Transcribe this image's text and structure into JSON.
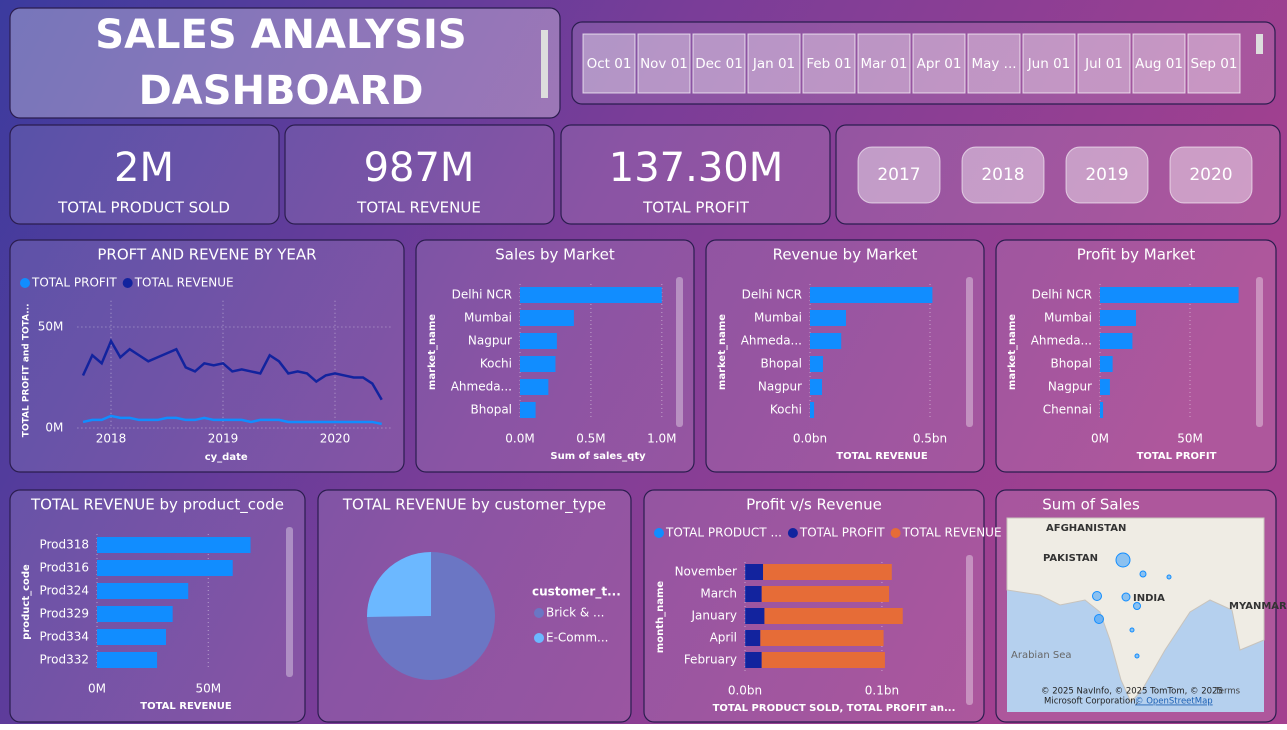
{
  "header": {
    "title": [
      "SALES ANALYSIS",
      "DASHBOARD"
    ]
  },
  "month_slicer": [
    "Oct 01",
    "Nov 01",
    "Dec 01",
    "Jan 01",
    "Feb 01",
    "Mar 01",
    "Apr 01",
    "May ...",
    "Jun 01",
    "Jul 01",
    "Aug 01",
    "Sep 01"
  ],
  "kpis": [
    {
      "value": "2M",
      "label": "TOTAL PRODUCT SOLD"
    },
    {
      "value": "987M",
      "label": "TOTAL REVENUE"
    },
    {
      "value": "137.30M",
      "label": "TOTAL PROFIT"
    }
  ],
  "year_slicer": [
    "2017",
    "2018",
    "2019",
    "2020"
  ],
  "chart_data": [
    {
      "type": "line",
      "title": "PROFT AND REVENE BY YEAR",
      "x_label": "cy_date",
      "y_label": "TOTAL PROFIT and TOTA...",
      "legend": "top-left",
      "grid": true,
      "x": [
        2017.75,
        2017.833,
        2017.917,
        2018,
        2018.083,
        2018.167,
        2018.25,
        2018.333,
        2018.417,
        2018.5,
        2018.583,
        2018.667,
        2018.75,
        2018.833,
        2018.917,
        2019,
        2019.083,
        2019.167,
        2019.25,
        2019.333,
        2019.417,
        2019.5,
        2019.583,
        2019.667,
        2019.75,
        2019.833,
        2019.917,
        2020,
        2020.083,
        2020.167,
        2020.25,
        2020.333,
        2020.417
      ],
      "xlim": [
        2017.7,
        2020.5
      ],
      "xticks": [
        2018,
        2019,
        2020
      ],
      "ylim": [
        0,
        63
      ],
      "yticks": [
        {
          "value": 0,
          "label": "0M"
        },
        {
          "value": 50,
          "label": "50M"
        }
      ],
      "series": [
        {
          "name": "TOTAL PROFIT",
          "color": "#118dff",
          "values": [
            3,
            4,
            4,
            6,
            5,
            5,
            4,
            4,
            4,
            5,
            5,
            4,
            4,
            5,
            4,
            4,
            4,
            4,
            3,
            4,
            4,
            4,
            3,
            3,
            3,
            3,
            3,
            3,
            3,
            3,
            3,
            3,
            2
          ]
        },
        {
          "name": "TOTAL REVENUE",
          "color": "#12239e",
          "values": [
            26,
            36,
            32,
            43,
            35,
            39,
            36,
            33,
            35,
            37,
            39,
            30,
            28,
            32,
            31,
            32,
            28,
            29,
            28,
            27,
            36,
            33,
            27,
            28,
            27,
            23,
            26,
            27,
            26,
            25,
            25,
            22,
            14
          ]
        }
      ]
    },
    {
      "type": "hbar",
      "title": "Sales by Market",
      "x_label": "Sum of sales_qty",
      "y_label": "market_name",
      "grid": true,
      "color": "#118dff",
      "categories": [
        "Delhi NCR",
        "Mumbai",
        "Nagpur",
        "Kochi",
        "Ahmeda...",
        "Bhopal"
      ],
      "values": [
        1.0,
        0.38,
        0.26,
        0.25,
        0.2,
        0.11
      ],
      "xlim": [
        0,
        1.1
      ],
      "xticks": [
        {
          "value": 0,
          "label": "0.0M"
        },
        {
          "value": 0.5,
          "label": "0.5M"
        },
        {
          "value": 1,
          "label": "1.0M"
        }
      ]
    },
    {
      "type": "hbar",
      "title": "Revenue by Market",
      "x_label": "TOTAL REVENUE",
      "y_label": "market_name",
      "grid": true,
      "color": "#118dff",
      "categories": [
        "Delhi NCR",
        "Mumbai",
        "Ahmeda...",
        "Bhopal",
        "Nagpur",
        "Kochi"
      ],
      "values": [
        0.51,
        0.15,
        0.13,
        0.054,
        0.05,
        0.017
      ],
      "xlim": [
        0,
        0.6
      ],
      "xticks": [
        {
          "value": 0,
          "label": "0.0bn"
        },
        {
          "value": 0.5,
          "label": "0.5bn"
        }
      ]
    },
    {
      "type": "hbar",
      "title": "Profit by Market",
      "x_label": "TOTAL PROFIT",
      "y_label": "market_name",
      "grid": true,
      "color": "#118dff",
      "categories": [
        "Delhi NCR",
        "Mumbai",
        "Ahmeda...",
        "Bhopal",
        "Nagpur",
        "Chennai"
      ],
      "values": [
        77,
        20,
        18,
        7,
        5.5,
        1.7
      ],
      "xlim": [
        0,
        85
      ],
      "xticks": [
        {
          "value": 0,
          "label": "0M"
        },
        {
          "value": 50,
          "label": "50M"
        }
      ]
    },
    {
      "type": "hbar",
      "title": "TOTAL REVENUE by product_code",
      "x_label": "TOTAL REVENUE",
      "y_label": "product_code",
      "grid": true,
      "color": "#118dff",
      "categories": [
        "Prod318",
        "Prod316",
        "Prod324",
        "Prod329",
        "Prod334",
        "Prod332"
      ],
      "values": [
        69,
        61,
        41,
        34,
        31,
        27
      ],
      "xlim": [
        0,
        80
      ],
      "xticks": [
        {
          "value": 0,
          "label": "0M"
        },
        {
          "value": 50,
          "label": "50M"
        }
      ]
    },
    {
      "type": "pie",
      "title": "TOTAL REVENUE by customer_type",
      "legend_title": "customer_t...",
      "categories": [
        "Brick & ...",
        "E-Comm..."
      ],
      "values": [
        0.74,
        0.25
      ],
      "colors": [
        "#6b76c4",
        "#6cb8ff"
      ]
    },
    {
      "type": "stacked_hbar",
      "title": "Profit v/s Revenue",
      "x_label": "TOTAL PRODUCT SOLD, TOTAL PROFIT an...",
      "y_label": "month_name",
      "legend": "top",
      "grid": true,
      "categories": [
        "November",
        "March",
        "January",
        "April",
        "February"
      ],
      "xlim": [
        0,
        0.13
      ],
      "xticks": [
        {
          "value": 0,
          "label": "0.0bn"
        },
        {
          "value": 0.1,
          "label": "0.1bn"
        }
      ],
      "series": [
        {
          "name": "TOTAL PRODUCT ...",
          "color": "#118dff",
          "values": [
            0.0002,
            0.0002,
            0.0002,
            0.0002,
            0.0002
          ]
        },
        {
          "name": "TOTAL PROFIT",
          "color": "#12239e",
          "values": [
            0.013,
            0.012,
            0.014,
            0.011,
            0.012
          ]
        },
        {
          "name": "TOTAL REVENUE",
          "color": "#e66c37",
          "values": [
            0.094,
            0.093,
            0.101,
            0.09,
            0.09
          ]
        }
      ]
    }
  ],
  "map": {
    "title": "Sum of Sales",
    "labels": [
      "AFGHANISTAN",
      "PAKISTAN",
      "INDIA",
      "MYANMAR",
      "Arabian Sea"
    ],
    "attribution": [
      "© 2025 NavInfo, © 2025 TomTom, © 2025",
      "Microsoft Corporation,",
      "© OpenStreetMap",
      "Terms"
    ]
  }
}
